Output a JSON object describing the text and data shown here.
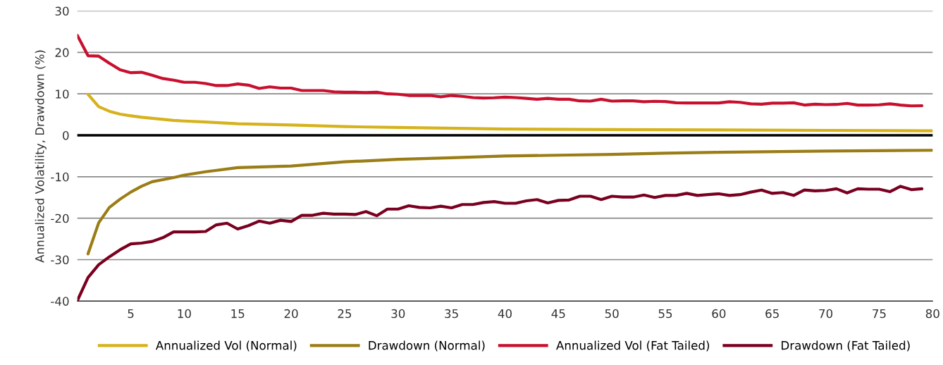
{
  "chart_data": {
    "type": "line",
    "ylabel": "Annualized Volatility, Drawdown (%)",
    "xlim": [
      0,
      80
    ],
    "xticks": [
      5,
      10,
      15,
      20,
      25,
      30,
      35,
      40,
      45,
      50,
      55,
      60,
      65,
      70,
      75,
      80
    ],
    "ylim": [
      -40,
      30
    ],
    "yticks": [
      -40,
      -30,
      -20,
      -10,
      0,
      10,
      20,
      30
    ],
    "grid": "y",
    "legend": "bottom",
    "line_style": "solid",
    "marker": "none",
    "ref_lines": [
      {
        "axis": "y",
        "value": 0,
        "color": "#000000"
      }
    ],
    "series": [
      {
        "name": "Annualized Vol (Normal)",
        "color": "#d6b21c",
        "x": [
          1,
          2,
          3,
          4,
          5,
          6,
          7,
          8,
          9,
          10,
          12,
          15,
          20,
          25,
          30,
          40,
          50,
          60,
          70,
          80
        ],
        "values": [
          9.9,
          6.9,
          5.8,
          5.1,
          4.7,
          4.35,
          4.1,
          3.85,
          3.6,
          3.45,
          3.2,
          2.8,
          2.5,
          2.1,
          1.9,
          1.5,
          1.4,
          1.3,
          1.2,
          1.1
        ]
      },
      {
        "name": "Drawdown (Normal)",
        "color": "#9b7d16",
        "x": [
          1,
          2,
          3,
          4,
          5,
          6,
          7,
          8,
          9,
          10,
          12,
          15,
          20,
          25,
          30,
          35,
          40,
          45,
          50,
          55,
          60,
          70,
          80
        ],
        "values": [
          -28.6,
          -21.1,
          -17.4,
          -15.4,
          -13.7,
          -12.3,
          -11.2,
          -10.7,
          -10.2,
          -9.6,
          -8.8,
          -7.8,
          -7.4,
          -6.4,
          -5.8,
          -5.4,
          -5.0,
          -4.8,
          -4.6,
          -4.3,
          -4.1,
          -3.8,
          -3.6
        ]
      },
      {
        "name": "Annualized Vol (Fat Tailed)",
        "color": "#c8102e",
        "x": [
          0,
          1,
          2,
          3,
          4,
          5,
          6,
          7,
          8,
          9,
          10,
          11,
          12,
          13,
          14,
          15,
          16,
          17,
          18,
          19,
          20,
          21,
          22,
          23,
          24,
          25,
          26,
          27,
          28,
          29,
          30,
          31,
          32,
          33,
          34,
          35,
          36,
          37,
          38,
          39,
          40,
          41,
          42,
          43,
          44,
          45,
          46,
          47,
          48,
          49,
          50,
          51,
          52,
          53,
          54,
          55,
          56,
          57,
          58,
          59,
          60,
          61,
          62,
          63,
          64,
          65,
          66,
          67,
          68,
          69,
          70,
          71,
          72,
          73,
          74,
          75,
          76,
          77,
          78,
          79
        ],
        "values": [
          24.1,
          19.2,
          19.1,
          17.4,
          15.8,
          15.1,
          15.2,
          14.5,
          13.7,
          13.3,
          12.8,
          12.8,
          12.5,
          12.0,
          12.0,
          12.4,
          12.1,
          11.3,
          11.7,
          11.4,
          11.4,
          10.8,
          10.8,
          10.8,
          10.5,
          10.4,
          10.4,
          10.3,
          10.4,
          10.0,
          9.9,
          9.6,
          9.6,
          9.6,
          9.3,
          9.6,
          9.4,
          9.1,
          9.0,
          9.05,
          9.2,
          9.1,
          8.9,
          8.7,
          8.9,
          8.7,
          8.7,
          8.3,
          8.25,
          8.7,
          8.25,
          8.3,
          8.3,
          8.1,
          8.2,
          8.15,
          7.85,
          7.8,
          7.8,
          7.8,
          7.8,
          8.1,
          7.95,
          7.6,
          7.5,
          7.75,
          7.75,
          7.85,
          7.3,
          7.5,
          7.4,
          7.45,
          7.7,
          7.3,
          7.3,
          7.35,
          7.6,
          7.3,
          7.1,
          7.15
        ]
      },
      {
        "name": "Drawdown (Fat Tailed)",
        "color": "#7a0020",
        "x": [
          0,
          1,
          2,
          3,
          4,
          5,
          6,
          7,
          8,
          9,
          10,
          11,
          12,
          13,
          14,
          15,
          16,
          17,
          18,
          19,
          20,
          21,
          22,
          23,
          24,
          25,
          26,
          27,
          28,
          29,
          30,
          31,
          32,
          33,
          34,
          35,
          36,
          37,
          38,
          39,
          40,
          41,
          42,
          43,
          44,
          45,
          46,
          47,
          48,
          49,
          50,
          51,
          52,
          53,
          54,
          55,
          56,
          57,
          58,
          59,
          60,
          61,
          62,
          63,
          64,
          65,
          66,
          67,
          68,
          69,
          70,
          71,
          72,
          73,
          74,
          75,
          76,
          77,
          78,
          79
        ],
        "values": [
          -39.9,
          -34.3,
          -31.2,
          -29.3,
          -27.6,
          -26.2,
          -26.0,
          -25.6,
          -24.7,
          -23.3,
          -23.3,
          -23.3,
          -23.2,
          -21.6,
          -21.2,
          -22.6,
          -21.8,
          -20.7,
          -21.2,
          -20.5,
          -20.8,
          -19.3,
          -19.3,
          -18.8,
          -19.0,
          -19.0,
          -19.1,
          -18.4,
          -19.4,
          -17.8,
          -17.8,
          -17.0,
          -17.4,
          -17.5,
          -17.1,
          -17.5,
          -16.7,
          -16.7,
          -16.2,
          -16.0,
          -16.4,
          -16.4,
          -15.8,
          -15.5,
          -16.3,
          -15.7,
          -15.6,
          -14.7,
          -14.7,
          -15.5,
          -14.7,
          -14.9,
          -14.9,
          -14.4,
          -15.0,
          -14.5,
          -14.5,
          -14.0,
          -14.5,
          -14.3,
          -14.1,
          -14.5,
          -14.3,
          -13.7,
          -13.2,
          -14.0,
          -13.8,
          -14.5,
          -13.2,
          -13.4,
          -13.3,
          -12.9,
          -13.9,
          -12.9,
          -13.0,
          -13.0,
          -13.6,
          -12.3,
          -13.1,
          -12.9
        ]
      }
    ]
  }
}
